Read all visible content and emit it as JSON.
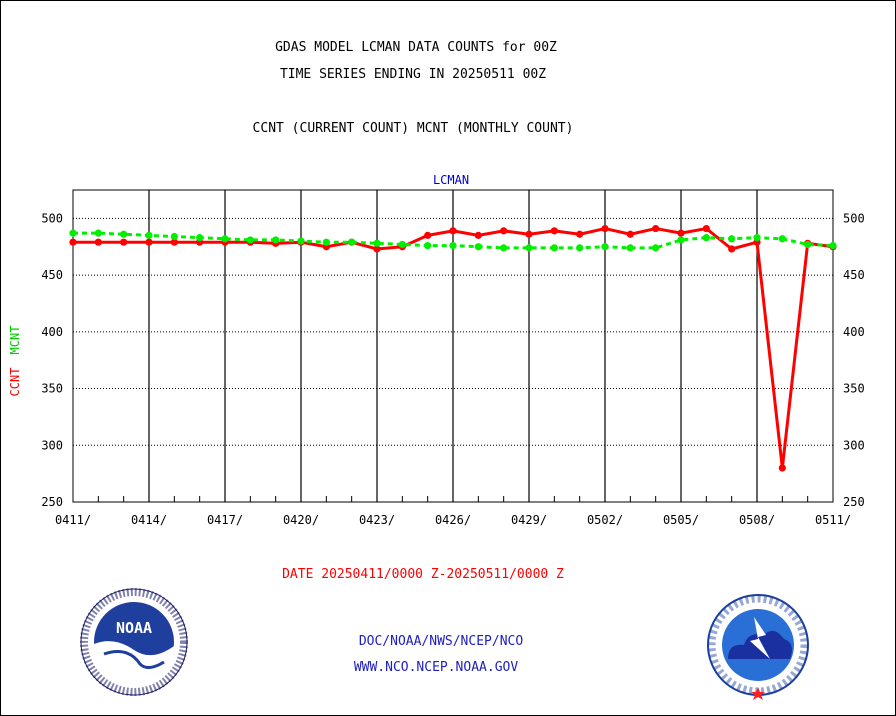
{
  "header": {
    "title_line1": "GDAS MODEL LCMAN DATA COUNTS for 00Z",
    "title_line2": "TIME SERIES ENDING IN 20250511 00Z",
    "subtitle": "CCNT (CURRENT COUNT) MCNT (MONTHLY COUNT)"
  },
  "footer": {
    "date_range": "DATE 20250411/0000 Z-20250511/0000 Z",
    "org_path": "DOC/NOAA/NWS/NCEP/NCO",
    "website": "WWW.NCO.NCEP.NOAA.GOV"
  },
  "logos": {
    "noaa_inner": "NOAA",
    "noaa_ring": "NATIONAL OCEANIC AND ATMOSPHERIC ADMINISTRATION · U.S. DEPARTMENT OF COMMERCE",
    "nws_ring": "NATIONAL WEATHER SERVICE"
  },
  "colors": {
    "ccnt": "#ff0000",
    "mcnt": "#00ee00",
    "plot_title": "#0000cc",
    "footer_blue": "#2020c0",
    "date_red": "#ff0000"
  },
  "chart_data": {
    "type": "line",
    "title": "LCMAN",
    "ylabel_ccnt": "CCNT",
    "ylabel_mcnt": "MCNT",
    "ylim": [
      250,
      525
    ],
    "yticks": [
      250,
      300,
      350,
      400,
      450,
      500
    ],
    "x_tick_labels": [
      "0411/",
      "0414/",
      "0417/",
      "0420/",
      "0423/",
      "0426/",
      "0429/",
      "0502/",
      "0505/",
      "0508/",
      "0511/"
    ],
    "grid": true,
    "x": [
      "0411",
      "0412",
      "0413",
      "0414",
      "0415",
      "0416",
      "0417",
      "0418",
      "0419",
      "0420",
      "0421",
      "0422",
      "0423",
      "0424",
      "0425",
      "0426",
      "0427",
      "0428",
      "0429",
      "0430",
      "0501",
      "0502",
      "0503",
      "0504",
      "0505",
      "0506",
      "0507",
      "0508",
      "0509",
      "0510",
      "0511"
    ],
    "series": [
      {
        "name": "CCNT",
        "color": "#ff0000",
        "values": [
          479,
          479,
          479,
          479,
          479,
          479,
          479,
          479,
          478,
          479,
          475,
          479,
          473,
          475,
          485,
          489,
          485,
          489,
          486,
          489,
          486,
          491,
          486,
          491,
          487,
          491,
          473,
          479,
          280,
          478,
          475
        ]
      },
      {
        "name": "MCNT",
        "color": "#00ee00",
        "values": [
          487,
          487,
          486,
          485,
          484,
          483,
          482,
          481,
          481,
          480,
          479,
          479,
          478,
          477,
          476,
          476,
          475,
          474,
          474,
          474,
          474,
          475,
          474,
          474,
          481,
          483,
          482,
          483,
          482,
          477,
          476
        ]
      }
    ]
  }
}
